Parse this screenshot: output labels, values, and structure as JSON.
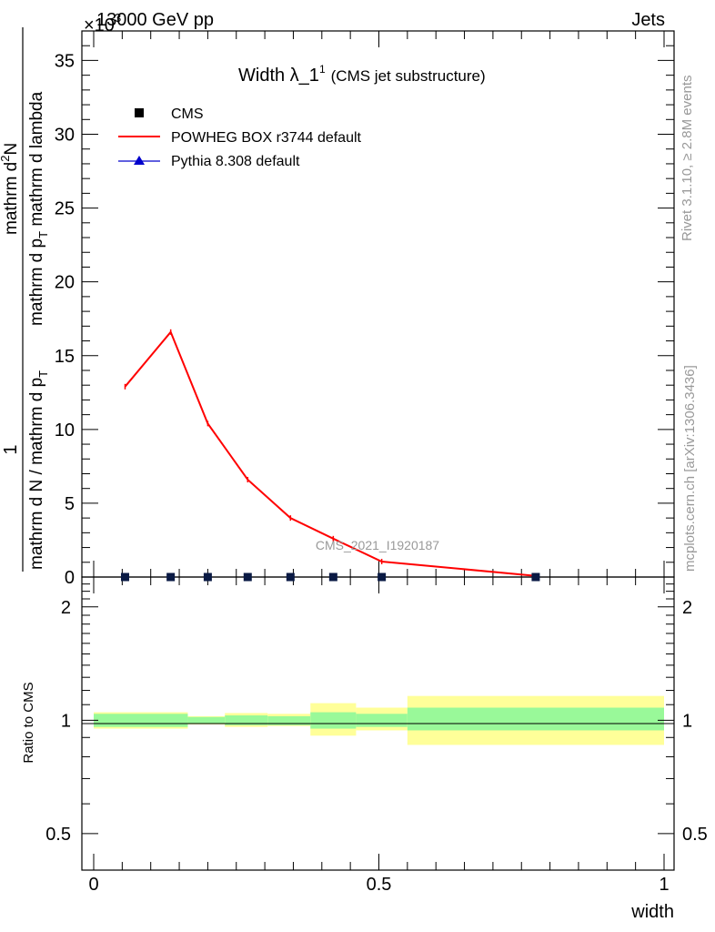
{
  "header": {
    "left": "13000 GeV pp",
    "right": "Jets",
    "exponent": "×10",
    "exponent_power": "3"
  },
  "side_text": {
    "rivet": "Rivet 3.1.10, ≥ 2.8M events",
    "mcplots": "mcplots.cern.ch [arXiv:1306.3436]"
  },
  "watermark": "CMS_2021_I1920187",
  "plot_title": {
    "main": "Width λ_1",
    "sup": "1",
    "sub": "(CMS jet substructure)"
  },
  "legend": [
    {
      "label": "CMS",
      "marker": "square",
      "color": "#000000"
    },
    {
      "label": "POWHEG BOX r3744 default",
      "marker": "line",
      "color": "#ff0000"
    },
    {
      "label": "Pythia 8.308 default",
      "marker": "triangle",
      "color": "#0000cc"
    }
  ],
  "y_label": {
    "numerator": "1",
    "denominator": "mathrm d N / mathrm d p",
    "denominator_sub": "T",
    "numerator2": "mathrm d",
    "numerator2_sup": "2",
    "numerator2_rest": "N",
    "denominator2": "mathrm d p",
    "denominator2_sub": "T",
    "denominator2_rest": " mathrm d lambda"
  },
  "ratio_label": "Ratio to CMS",
  "x_label": "width",
  "chart_data": {
    "type": "line",
    "x_ticks": [
      "0",
      "0.5",
      "1"
    ],
    "y_ticks": [
      "0",
      "5",
      "10",
      "15",
      "20",
      "25",
      "30",
      "35"
    ],
    "ratio_ticks": [
      "0.5",
      "1",
      "2"
    ],
    "ratio_ticks_right": [
      "0.5",
      "1",
      "2"
    ],
    "xlim": [
      0,
      1
    ],
    "ylim": [
      0,
      37
    ],
    "ratio_ylim": [
      0.4,
      2.4
    ],
    "series": [
      {
        "name": "POWHEG BOX r3744 default",
        "x": [
          0.055,
          0.135,
          0.2,
          0.27,
          0.345,
          0.42,
          0.505,
          0.775
        ],
        "y": [
          12.9,
          16.6,
          10.4,
          6.6,
          4.0,
          2.6,
          1.05,
          0.08
        ]
      },
      {
        "name": "CMS",
        "x": [
          0.055,
          0.135,
          0.2,
          0.27,
          0.345,
          0.42,
          0.505,
          0.775
        ],
        "y": [
          0,
          0,
          0,
          0,
          0,
          0,
          0,
          0
        ]
      },
      {
        "name": "Pythia 8.308 default",
        "x": [],
        "y": []
      }
    ],
    "ratio_bands": [
      {
        "x0": 0.0,
        "x1": 0.165,
        "inner": [
          0.96,
          1.04
        ],
        "outer": [
          0.95,
          1.05
        ]
      },
      {
        "x0": 0.165,
        "x1": 0.23,
        "inner": [
          0.98,
          1.02
        ],
        "outer": [
          0.975,
          1.025
        ]
      },
      {
        "x0": 0.23,
        "x1": 0.305,
        "inner": [
          0.97,
          1.03
        ],
        "outer": [
          0.96,
          1.045
        ]
      },
      {
        "x0": 0.305,
        "x1": 0.38,
        "inner": [
          0.97,
          1.025
        ],
        "outer": [
          0.965,
          1.04
        ]
      },
      {
        "x0": 0.38,
        "x1": 0.46,
        "inner": [
          0.95,
          1.05
        ],
        "outer": [
          0.91,
          1.11
        ]
      },
      {
        "x0": 0.46,
        "x1": 0.55,
        "inner": [
          0.96,
          1.04
        ],
        "outer": [
          0.94,
          1.08
        ]
      },
      {
        "x0": 0.55,
        "x1": 1.0,
        "inner": [
          0.94,
          1.08
        ],
        "outer": [
          0.86,
          1.16
        ]
      }
    ],
    "colors": {
      "inner_band": "#99f999",
      "outer_band": "#ffff99",
      "powheg": "#ff0000",
      "pythia": "#0000cc"
    }
  }
}
